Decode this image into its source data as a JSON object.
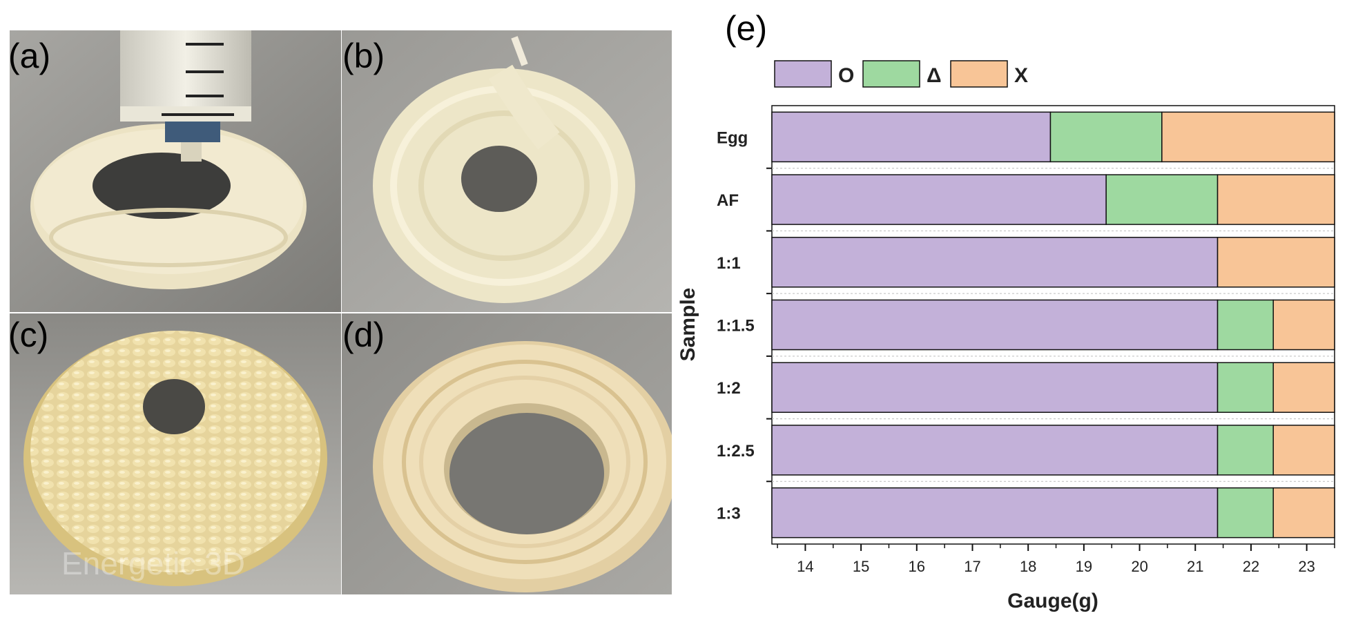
{
  "panels": {
    "a": "(a)",
    "b": "(b)",
    "c": "(c)",
    "d": "(d)",
    "e": "(e)"
  },
  "photo_c_watermark": "Energetic 3D",
  "chart_data": {
    "type": "bar",
    "orientation": "horizontal",
    "stacked": true,
    "xlabel": "Gauge(g)",
    "ylabel": "Sample",
    "xlim": [
      13.4,
      23.5
    ],
    "xticks": [
      14,
      15,
      16,
      17,
      18,
      19,
      20,
      21,
      22,
      23
    ],
    "categories": [
      "Egg",
      "AF",
      "1:1",
      "1:1.5",
      "1:2",
      "1:2.5",
      "1:3"
    ],
    "legend": {
      "placement": "top-left",
      "entries": [
        {
          "label": "O",
          "color": "#c3b1d9"
        },
        {
          "label": "Δ",
          "color": "#9ed9a0"
        },
        {
          "label": "X",
          "color": "#f8c597"
        }
      ]
    },
    "bars": [
      {
        "category": "Egg",
        "O": [
          13.4,
          18.4
        ],
        "Δ": [
          18.4,
          20.4
        ],
        "X": [
          20.4,
          23.5
        ]
      },
      {
        "category": "AF",
        "O": [
          13.4,
          19.4
        ],
        "Δ": [
          19.4,
          21.4
        ],
        "X": [
          21.4,
          23.5
        ]
      },
      {
        "category": "1:1",
        "O": [
          13.4,
          21.4
        ],
        "Δ": null,
        "X": [
          21.4,
          23.5
        ]
      },
      {
        "category": "1:1.5",
        "O": [
          13.4,
          21.4
        ],
        "Δ": [
          21.4,
          22.4
        ],
        "X": [
          22.4,
          23.5
        ]
      },
      {
        "category": "1:2",
        "O": [
          13.4,
          21.4
        ],
        "Δ": [
          21.4,
          22.4
        ],
        "X": [
          22.4,
          23.5
        ]
      },
      {
        "category": "1:2.5",
        "O": [
          13.4,
          21.4
        ],
        "Δ": [
          21.4,
          22.4
        ],
        "X": [
          22.4,
          23.5
        ]
      },
      {
        "category": "1:3",
        "O": [
          13.4,
          21.4
        ],
        "Δ": [
          21.4,
          22.4
        ],
        "X": [
          22.4,
          23.5
        ]
      }
    ],
    "grid": false
  }
}
